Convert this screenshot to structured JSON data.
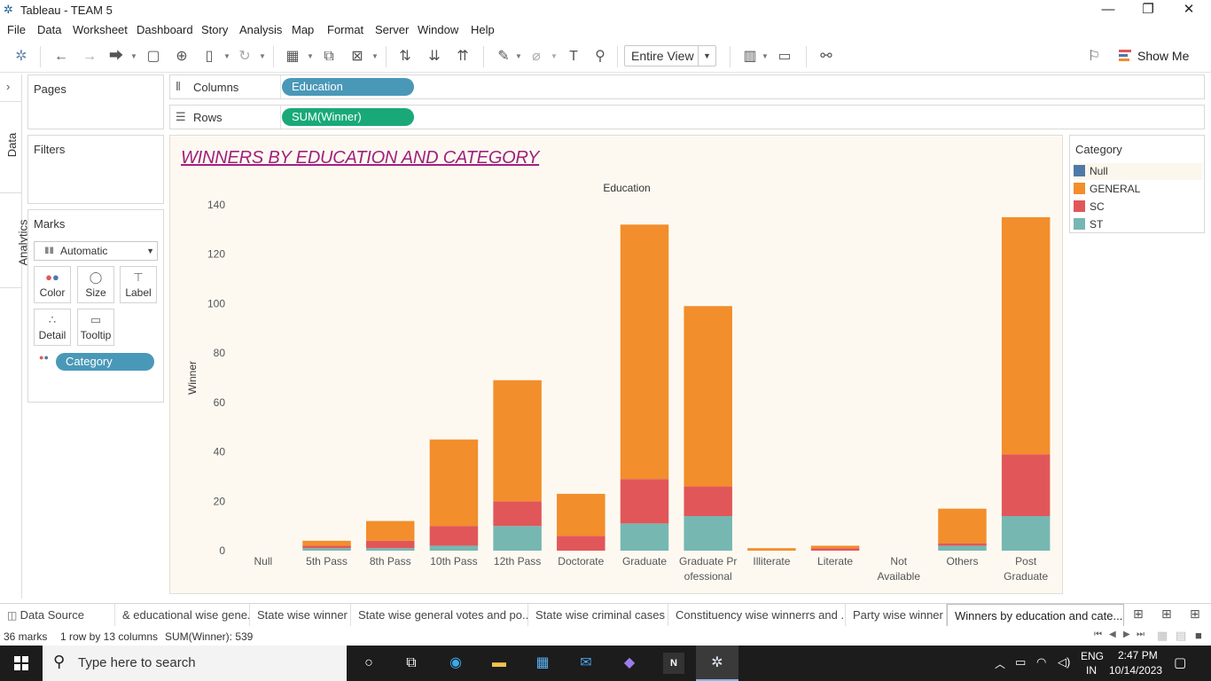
{
  "window": {
    "title": "Tableau - TEAM 5"
  },
  "menu": [
    "File",
    "Data",
    "Worksheet",
    "Dashboard",
    "Story",
    "Analysis",
    "Map",
    "Format",
    "Server",
    "Window",
    "Help"
  ],
  "toolbar": {
    "fit_value": "Entire View",
    "show_me_label": "Show Me"
  },
  "left_tabs": {
    "data": "Data",
    "analytics": "Analytics"
  },
  "cards": {
    "pages": "Pages",
    "filters": "Filters",
    "marks": "Marks",
    "marks_type": "Automatic",
    "color": "Color",
    "size": "Size",
    "label": "Label",
    "detail": "Detail",
    "tooltip": "Tooltip",
    "category_pill": "Category"
  },
  "shelves": {
    "columns_label": "Columns",
    "columns_pill": "Education",
    "rows_label": "Rows",
    "rows_pill": "SUM(Winner)"
  },
  "colors": {
    "null": "#4e79a7",
    "general": "#f28e2b",
    "sc": "#e15759",
    "st": "#76b7b2",
    "pill_blue": "#4a98b8",
    "pill_green": "#19a979",
    "title": "#a0207e"
  },
  "legend": {
    "title": "Category",
    "items": [
      {
        "label": "Null",
        "color": "#4e79a7"
      },
      {
        "label": "GENERAL",
        "color": "#f28e2b"
      },
      {
        "label": "SC",
        "color": "#e15759"
      },
      {
        "label": "ST",
        "color": "#76b7b2"
      }
    ]
  },
  "chart_data": {
    "type": "bar",
    "stacked": true,
    "title": "WINNERS BY EDUCATION AND CATEGORY",
    "xlabel": "Education",
    "ylabel": "Winner",
    "ylim": [
      0,
      140
    ],
    "yticks": [
      0,
      20,
      40,
      60,
      80,
      100,
      120,
      140
    ],
    "categories": [
      "Null",
      "5th Pass",
      "8th Pass",
      "10th Pass",
      "12th Pass",
      "Doctorate",
      "Graduate",
      "Graduate Professional",
      "Illiterate",
      "Literate",
      "Not Available",
      "Others",
      "Post Graduate"
    ],
    "category_labels": [
      [
        "Null"
      ],
      [
        "5th Pass"
      ],
      [
        "8th Pass"
      ],
      [
        "10th Pass"
      ],
      [
        "12th Pass"
      ],
      [
        "Doctorate"
      ],
      [
        "Graduate"
      ],
      [
        "Graduate Pr",
        "ofessional"
      ],
      [
        "Illiterate"
      ],
      [
        "Literate"
      ],
      [
        "Not",
        "Available"
      ],
      [
        "Others"
      ],
      [
        "Post",
        "Graduate"
      ]
    ],
    "series": [
      {
        "name": "Null",
        "values": [
          0,
          0,
          0,
          0,
          0,
          0,
          0,
          0,
          0,
          0,
          0,
          0,
          0
        ]
      },
      {
        "name": "ST",
        "values": [
          0,
          1,
          1,
          2,
          10,
          0,
          11,
          14,
          0,
          0,
          0,
          2,
          14
        ]
      },
      {
        "name": "SC",
        "values": [
          0,
          1,
          3,
          8,
          10,
          6,
          18,
          12,
          0,
          1,
          0,
          1,
          25
        ]
      },
      {
        "name": "GENERAL",
        "values": [
          0,
          2,
          8,
          35,
          49,
          17,
          103,
          73,
          1,
          1,
          0,
          14,
          96
        ]
      }
    ],
    "grid": false,
    "legend_position": "right"
  },
  "tabs": [
    {
      "label": "Data Source"
    },
    {
      "label": "& educational wise gene..."
    },
    {
      "label": "State wise winner"
    },
    {
      "label": "State wise general votes and po..."
    },
    {
      "label": "State wise criminal cases"
    },
    {
      "label": "Constituency wise winnerrs and ..."
    },
    {
      "label": "Party wise winner"
    },
    {
      "label": "Winners by education and cate..."
    }
  ],
  "status": {
    "marks": "36 marks",
    "rows_cols": "1 row by 13 columns",
    "sum": "SUM(Winner): 539"
  },
  "taskbar": {
    "search_placeholder": "Type here to search",
    "lang1": "ENG",
    "lang2": "IN",
    "time": "2:47 PM",
    "date": "10/14/2023"
  }
}
